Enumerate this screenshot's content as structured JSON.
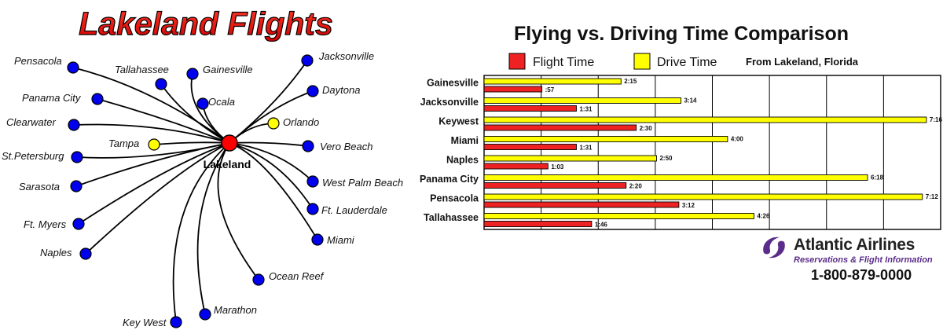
{
  "map": {
    "title": "Lakeland Flights",
    "hub": {
      "name": "Lakeland",
      "color": "#ff0000"
    },
    "destinations": [
      {
        "name": "Pensacola",
        "highlight": false
      },
      {
        "name": "Tallahassee",
        "highlight": false
      },
      {
        "name": "Gainesville",
        "highlight": false
      },
      {
        "name": "Jacksonville",
        "highlight": false
      },
      {
        "name": "Panama City",
        "highlight": false
      },
      {
        "name": "Ocala",
        "highlight": false
      },
      {
        "name": "Daytona",
        "highlight": false
      },
      {
        "name": "Clearwater",
        "highlight": false
      },
      {
        "name": "Orlando",
        "highlight": true
      },
      {
        "name": "Tampa",
        "highlight": true
      },
      {
        "name": "Vero Beach",
        "highlight": false
      },
      {
        "name": "St.Petersburg",
        "highlight": false
      },
      {
        "name": "Sarasota",
        "highlight": false
      },
      {
        "name": "West Palm Beach",
        "highlight": false
      },
      {
        "name": "Ft. Lauderdale",
        "highlight": false
      },
      {
        "name": "Ft. Myers",
        "highlight": false
      },
      {
        "name": "Miami",
        "highlight": false
      },
      {
        "name": "Naples",
        "highlight": false
      },
      {
        "name": "Ocean Reef",
        "highlight": false
      },
      {
        "name": "Marathon",
        "highlight": false
      },
      {
        "name": "Key West",
        "highlight": false
      }
    ],
    "colors": {
      "destination": "#0000ee",
      "highlight": "#ffff00",
      "title": "#ff0000"
    }
  },
  "chart_data": {
    "type": "bar",
    "orientation": "horizontal",
    "title": "Flying vs. Driving Time Comparison",
    "subtitle": "From Lakeland, Florida",
    "categories": [
      "Gainesville",
      "Jacksonville",
      "Keywest",
      "Miami",
      "Naples",
      "Panama City",
      "Pensacola",
      "Tallahassee"
    ],
    "unit": "minutes",
    "series": [
      {
        "name": "Drive Time",
        "color": "#ffff00",
        "values": [
          135,
          194,
          436,
          240,
          170,
          378,
          432,
          266
        ],
        "labels": [
          "2:15",
          "3:14",
          "7:16",
          "4:00",
          "2:50",
          "6:18",
          "7:12",
          "4:26"
        ]
      },
      {
        "name": "Flight Time",
        "color": "#ee2222",
        "values": [
          57,
          91,
          150,
          91,
          63,
          140,
          192,
          106
        ],
        "labels": [
          ":57",
          "1:31",
          "2:30",
          "1:31",
          "1:03",
          "2:20",
          "3:12",
          "1:46"
        ]
      }
    ],
    "xlim": [
      0,
      450
    ],
    "grid": true,
    "legend": "top"
  },
  "logo": {
    "name": "Atlantic Airlines",
    "tagline": "Reservations & Flight Information",
    "phone": "1-800-879-0000",
    "color": "#5a2d8a"
  }
}
